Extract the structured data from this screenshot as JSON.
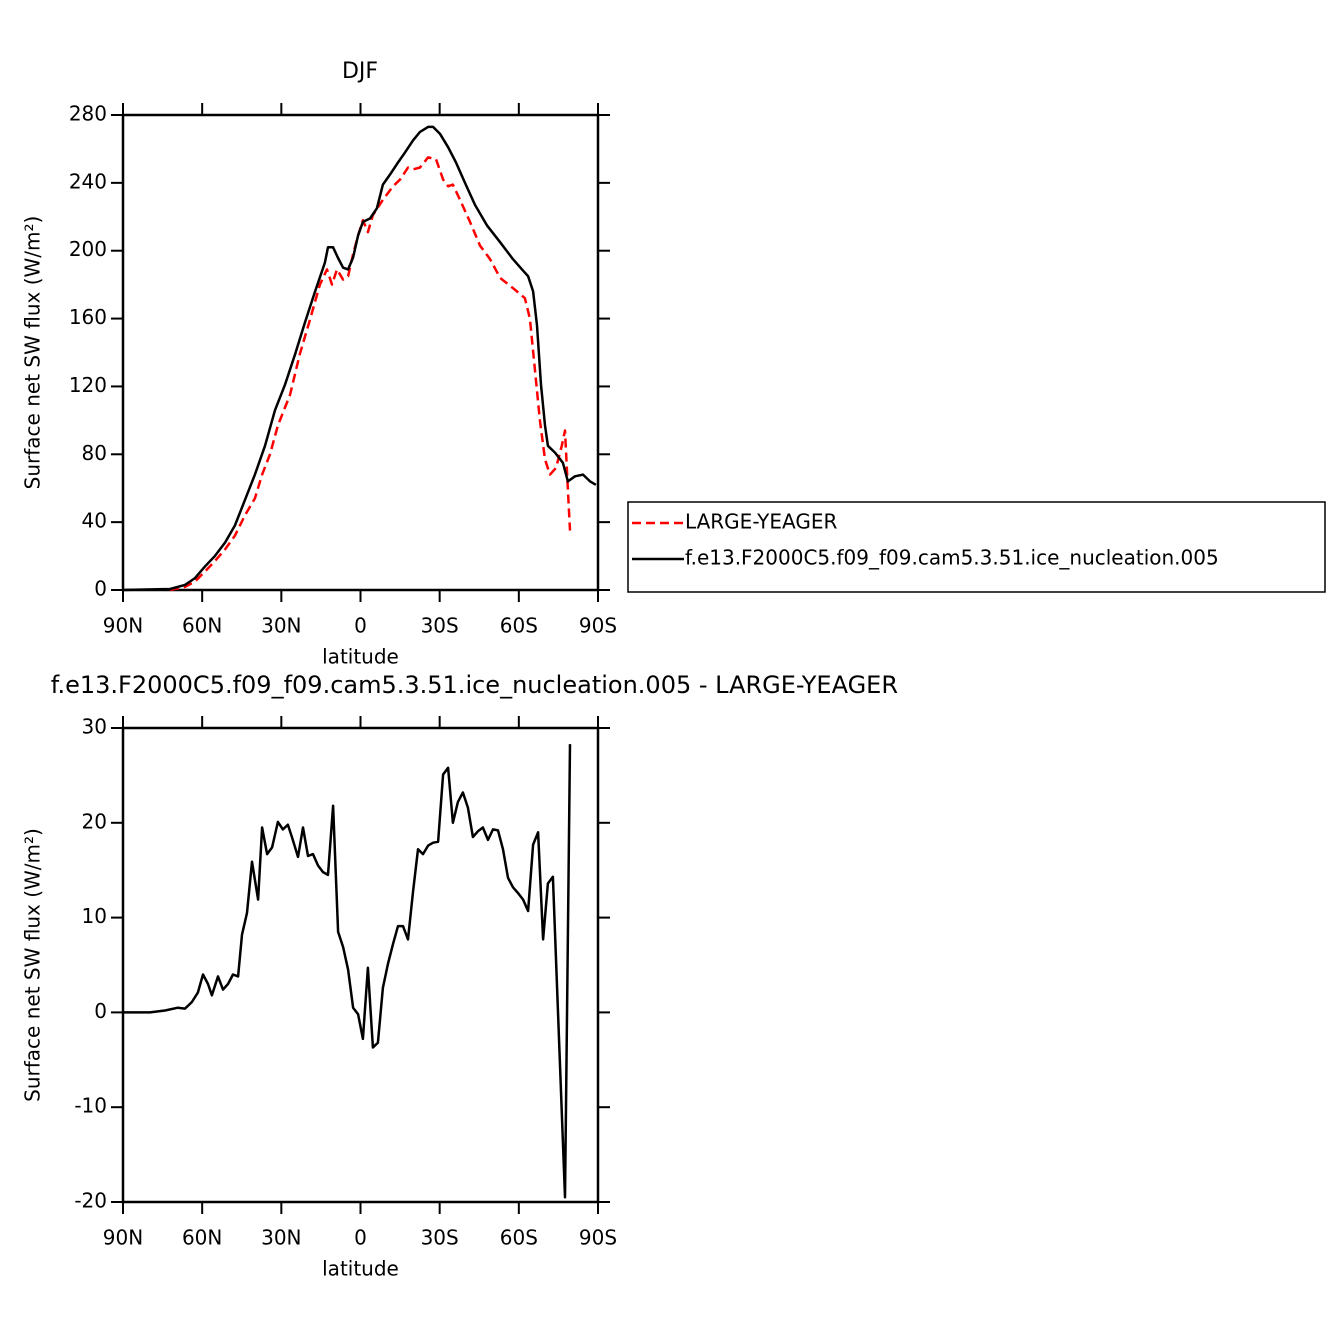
{
  "chart_data": [
    {
      "type": "line",
      "title": "DJF",
      "xlabel": "latitude",
      "ylabel": "Surface net SW flux (W/m²)",
      "xlim": [
        90,
        -90
      ],
      "xticks": [
        {
          "value": 90,
          "label": "90N"
        },
        {
          "value": 60,
          "label": "60N"
        },
        {
          "value": 30,
          "label": "30N"
        },
        0,
        {
          "value": -30,
          "label": "30S"
        },
        {
          "value": -60,
          "label": "60S"
        },
        {
          "value": -90,
          "label": "90S"
        }
      ],
      "ylim": [
        0,
        280
      ],
      "yticks": [
        0,
        40,
        80,
        120,
        160,
        200,
        240,
        280
      ],
      "legend": "right",
      "series": [
        {
          "name": "LARGE-YEAGER",
          "color": "#ff0000",
          "dash": "dashed",
          "x": [
            72.2,
            66.5,
            62.7,
            58.9,
            55.2,
            51.3,
            47.6,
            43.8,
            40.0,
            37.3,
            34.3,
            31.3,
            26.7,
            23.0,
            19.2,
            15.4,
            12.7,
            10.8,
            8.9,
            6.6,
            4.7,
            2.8,
            0.9,
            -0.9,
            -2.8,
            -4.7,
            -8.5,
            -12.3,
            -15.0,
            -18.0,
            -19.9,
            -22.5,
            -25.6,
            -28.6,
            -31.3,
            -33.2,
            -35.0,
            -37.7,
            -41.5,
            -45.3,
            -49.1,
            -52.9,
            -58.5,
            -62.3,
            -64.2,
            -66.1,
            -68.0,
            -69.9,
            -71.8,
            -74.1,
            -76.3,
            -77.5,
            -78.6,
            -79.4
          ],
          "values": [
            0,
            1.8,
            5,
            11,
            17,
            24,
            32,
            44,
            54,
            68,
            80,
            97,
            115,
            139,
            159,
            180,
            189,
            180,
            189,
            183,
            185,
            198,
            209,
            218,
            211,
            221,
            230,
            238,
            242,
            249,
            248,
            249,
            255,
            254,
            242,
            238,
            239,
            230,
            217,
            203,
            195,
            184,
            177,
            172,
            160,
            130,
            100,
            77,
            68,
            72,
            85,
            94,
            59,
            35
          ]
        },
        {
          "name": "f.e13.F2000C5.f09_f09.cam5.3.51.ice_nucleation.005",
          "color": "#000000",
          "dash": "solid",
          "x": [
            90,
            72.2,
            66.5,
            62.7,
            58.9,
            55.2,
            51.3,
            47.6,
            43.8,
            40.0,
            36.2,
            32.4,
            28.6,
            24.8,
            21.0,
            17.2,
            13.5,
            12.3,
            10.4,
            8.6,
            6.6,
            4.7,
            2.8,
            0.9,
            -0.9,
            -3.6,
            -6.2,
            -8.5,
            -11.2,
            -14.2,
            -16.9,
            -19.9,
            -22.5,
            -25.6,
            -27.5,
            -30.1,
            -33.2,
            -36.2,
            -39.6,
            -43.4,
            -47.9,
            -52.9,
            -57.8,
            -61.2,
            -63.5,
            -65.4,
            -66.9,
            -68.4,
            -69.9,
            -71.0,
            -73.7,
            -76.7,
            -78.6,
            -81.3,
            -84.3,
            -87.0,
            -89.2
          ],
          "values": [
            0,
            0.6,
            3,
            7,
            14,
            20,
            28,
            38,
            53,
            68,
            85,
            106,
            121,
            139,
            158,
            176,
            193,
            202,
            202,
            196,
            190,
            189,
            196,
            209,
            217,
            219,
            225,
            239,
            245,
            252,
            258,
            265,
            270,
            273,
            273,
            269,
            261,
            252,
            240,
            227,
            215,
            205,
            195,
            189,
            185,
            176,
            156,
            121,
            97,
            85,
            81,
            75,
            64,
            67,
            68,
            64,
            62
          ]
        }
      ]
    },
    {
      "type": "line",
      "title": "f.e13.F2000C5.f09_f09.cam5.3.51.ice_nucleation.005 - LARGE-YEAGER",
      "xlabel": "latitude",
      "ylabel": "Surface net SW flux (W/m²)",
      "xlim": [
        90,
        -90
      ],
      "xticks": [
        {
          "value": 90,
          "label": "90N"
        },
        {
          "value": 60,
          "label": "60N"
        },
        {
          "value": 30,
          "label": "30N"
        },
        0,
        {
          "value": -30,
          "label": "30S"
        },
        {
          "value": -60,
          "label": "60S"
        },
        {
          "value": -90,
          "label": "90S"
        }
      ],
      "ylim": [
        -20,
        30
      ],
      "yticks": [
        -20,
        -10,
        0,
        10,
        20,
        30
      ],
      "series": [
        {
          "color": "#000000",
          "dash": "solid",
          "x": [
            90,
            79.8,
            74.1,
            69.2,
            66.5,
            63.9,
            61.6,
            59.7,
            57.8,
            56.3,
            54.0,
            52.1,
            50.2,
            48.3,
            46.4,
            44.9,
            43.0,
            41.1,
            38.8,
            37.3,
            35.4,
            33.5,
            31.3,
            29.4,
            27.5,
            26.0,
            23.7,
            21.8,
            19.9,
            18.0,
            16.1,
            14.2,
            12.3,
            10.4,
            8.5,
            6.6,
            4.7,
            2.8,
            0.9,
            -0.9,
            -2.8,
            -4.7,
            -6.6,
            -8.5,
            -10.4,
            -12.3,
            -14.2,
            -16.1,
            -18.0,
            -19.9,
            -21.8,
            -23.7,
            -25.6,
            -27.5,
            -29.4,
            -31.3,
            -33.2,
            -35.0,
            -36.9,
            -38.8,
            -40.7,
            -42.6,
            -44.5,
            -46.4,
            -48.3,
            -50.2,
            -52.1,
            -54.0,
            -55.9,
            -57.8,
            -59.7,
            -61.6,
            -63.5,
            -65.4,
            -67.3,
            -69.2,
            -71.0,
            -72.9,
            -74.8,
            -77.5,
            -79.4
          ],
          "values": [
            0,
            0,
            0.2,
            0.5,
            0.4,
            1.1,
            2.1,
            4.0,
            3.0,
            1.8,
            3.8,
            2.4,
            3.0,
            4.0,
            3.8,
            8.2,
            10.5,
            15.9,
            11.9,
            19.5,
            16.7,
            17.4,
            20.1,
            19.3,
            19.8,
            18.5,
            16.4,
            19.5,
            16.5,
            16.7,
            15.5,
            14.8,
            14.5,
            21.8,
            8.5,
            6.9,
            4.5,
            0.5,
            -0.2,
            -2.8,
            4.7,
            -3.7,
            -3.2,
            2.6,
            5.1,
            7.2,
            9.1,
            9.1,
            7.7,
            12.7,
            17.2,
            16.7,
            17.6,
            17.9,
            18.0,
            25.1,
            25.8,
            20.0,
            22.2,
            23.2,
            21.6,
            18.5,
            19.1,
            19.5,
            18.2,
            19.3,
            19.2,
            17.2,
            14.2,
            13.2,
            12.6,
            11.9,
            10.7,
            17.7,
            19.0,
            7.7,
            13.6,
            14.3,
            0.3,
            -19.5,
            28.3
          ]
        }
      ]
    }
  ]
}
